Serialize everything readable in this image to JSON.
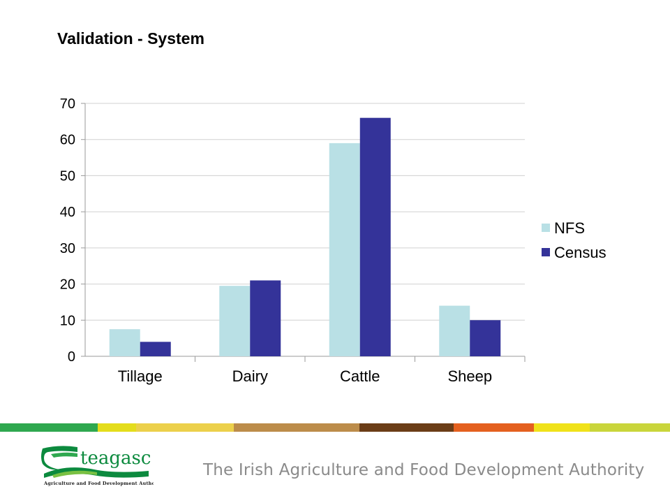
{
  "slide": {
    "title": "Validation - System"
  },
  "chart_data": {
    "type": "bar",
    "title": "",
    "xlabel": "",
    "ylabel": "",
    "categories": [
      "Tillage",
      "Dairy",
      "Cattle",
      "Sheep"
    ],
    "series": [
      {
        "name": "NFS",
        "values": [
          7.5,
          19.5,
          59,
          14
        ],
        "color": "#b9e0e5"
      },
      {
        "name": "Census",
        "values": [
          4,
          21,
          66,
          10
        ],
        "color": "#343399"
      }
    ],
    "ylim": [
      0,
      70
    ],
    "yticks": [
      0,
      10,
      20,
      30,
      40,
      50,
      60,
      70
    ],
    "grid": true,
    "legend_position": "right"
  },
  "footer": {
    "band_colors": [
      "#2fa84f",
      "#e4dd1c",
      "#ecd04b",
      "#bc8c4a",
      "#6b3d17",
      "#e4601f",
      "#f0e21a",
      "#c9d53b"
    ],
    "logo_text": "teagasc",
    "logo_subtext": "Agriculture and Food Development Authority",
    "tagline": "The Irish Agriculture and Food Development Authority"
  }
}
